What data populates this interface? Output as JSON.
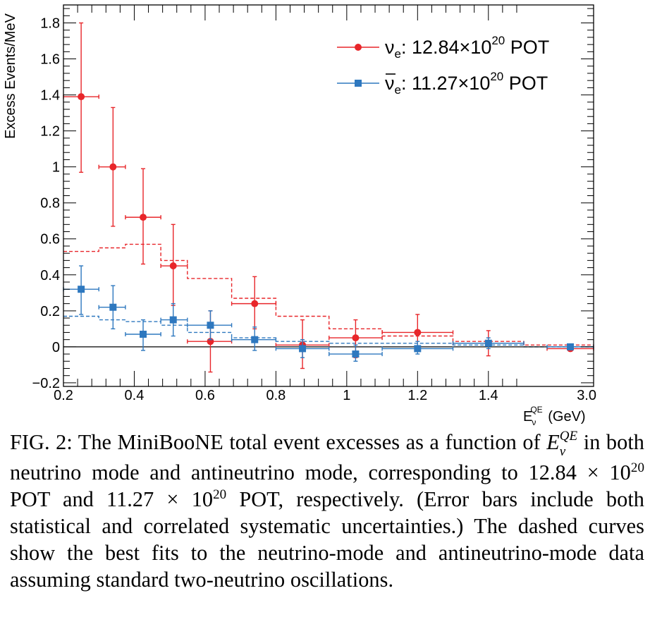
{
  "chart_data": {
    "type": "scatter",
    "xlabel_main": "E",
    "xlabel_sub": "ν",
    "xlabel_sup": "QE",
    "xlabel_unit": " (GeV)",
    "ylabel": "Excess Events/MeV",
    "xlim": [
      0.2,
      3.0
    ],
    "ylim": [
      -0.22,
      1.9
    ],
    "x_ticks": [
      {
        "v": 0.2,
        "label": "0.2"
      },
      {
        "v": 0.4,
        "label": "0.4"
      },
      {
        "v": 0.6,
        "label": "0.6"
      },
      {
        "v": 0.8,
        "label": "0.8"
      },
      {
        "v": 1.0,
        "label": "1"
      },
      {
        "v": 1.2,
        "label": "1.2"
      },
      {
        "v": 1.4,
        "label": "1.4"
      },
      {
        "v": 3.0,
        "label": "3.0"
      }
    ],
    "x_break_at": 1.5,
    "y_ticks": [
      {
        "v": -0.2,
        "label": "−0.2"
      },
      {
        "v": 0,
        "label": "0"
      },
      {
        "v": 0.2,
        "label": "0.2"
      },
      {
        "v": 0.4,
        "label": "0.4"
      },
      {
        "v": 0.6,
        "label": "0.6"
      },
      {
        "v": 0.8,
        "label": "0.8"
      },
      {
        "v": 1.0,
        "label": "1"
      },
      {
        "v": 1.2,
        "label": "1.2"
      },
      {
        "v": 1.4,
        "label": "1.4"
      },
      {
        "v": 1.6,
        "label": "1.6"
      },
      {
        "v": 1.8,
        "label": "1.8"
      }
    ],
    "legend_placement": "top-right",
    "series": [
      {
        "name": "νe: 12.84×10^20 POT",
        "legend_sym": "ν",
        "legend_sub": "e",
        "legend_text": ": 12.84×10",
        "legend_sup": "20",
        "legend_tail": " POT",
        "color": "#e8262a",
        "marker": "circle",
        "points": [
          {
            "x": 0.25,
            "xlo": 0.2,
            "xhi": 0.3,
            "y": 1.39,
            "ylo": 0.97,
            "yhi": 1.8
          },
          {
            "x": 0.34,
            "xlo": 0.3,
            "xhi": 0.375,
            "y": 1.0,
            "ylo": 0.67,
            "yhi": 1.33
          },
          {
            "x": 0.425,
            "xlo": 0.375,
            "xhi": 0.475,
            "y": 0.72,
            "ylo": 0.46,
            "yhi": 0.99
          },
          {
            "x": 0.51,
            "xlo": 0.475,
            "xhi": 0.55,
            "y": 0.45,
            "ylo": 0.23,
            "yhi": 0.68
          },
          {
            "x": 0.615,
            "xlo": 0.55,
            "xhi": 0.675,
            "y": 0.03,
            "ylo": -0.14,
            "yhi": 0.2
          },
          {
            "x": 0.74,
            "xlo": 0.675,
            "xhi": 0.8,
            "y": 0.24,
            "ylo": 0.1,
            "yhi": 0.39
          },
          {
            "x": 0.875,
            "xlo": 0.8,
            "xhi": 0.95,
            "y": 0.01,
            "ylo": -0.12,
            "yhi": 0.15
          },
          {
            "x": 1.025,
            "xlo": 0.95,
            "xhi": 1.1,
            "y": 0.05,
            "ylo": -0.06,
            "yhi": 0.15
          },
          {
            "x": 1.2,
            "xlo": 1.1,
            "xhi": 1.3,
            "y": 0.08,
            "ylo": -0.02,
            "yhi": 0.18
          },
          {
            "x": 1.4,
            "xlo": 1.3,
            "xhi": 1.5,
            "y": 0.02,
            "ylo": -0.05,
            "yhi": 0.09
          },
          {
            "x": 2.5,
            "xlo": 2.0,
            "xhi": 3.0,
            "y": -0.01,
            "ylo": -0.02,
            "yhi": 0.0
          }
        ],
        "fit": [
          {
            "xlo": 0.2,
            "xhi": 0.3,
            "y": 0.53
          },
          {
            "xlo": 0.3,
            "xhi": 0.375,
            "y": 0.55
          },
          {
            "xlo": 0.375,
            "xhi": 0.475,
            "y": 0.57
          },
          {
            "xlo": 0.475,
            "xhi": 0.55,
            "y": 0.48
          },
          {
            "xlo": 0.55,
            "xhi": 0.675,
            "y": 0.38
          },
          {
            "xlo": 0.675,
            "xhi": 0.8,
            "y": 0.27
          },
          {
            "xlo": 0.8,
            "xhi": 0.95,
            "y": 0.17
          },
          {
            "xlo": 0.95,
            "xhi": 1.1,
            "y": 0.1
          },
          {
            "xlo": 1.1,
            "xhi": 1.3,
            "y": 0.06
          },
          {
            "xlo": 1.3,
            "xhi": 1.5,
            "y": 0.03
          },
          {
            "xlo": 1.5,
            "xhi": 3.0,
            "y": 0.01
          }
        ]
      },
      {
        "name": "ν̄e: 11.27×10^20 POT",
        "legend_sym": "ν",
        "legend_sub": "e",
        "legend_text": ": 11.27×10",
        "legend_sup": "20",
        "legend_tail": " POT",
        "legend_bar": true,
        "color": "#2e78bf",
        "marker": "square",
        "points": [
          {
            "x": 0.25,
            "xlo": 0.2,
            "xhi": 0.3,
            "y": 0.32,
            "ylo": 0.18,
            "yhi": 0.45
          },
          {
            "x": 0.34,
            "xlo": 0.3,
            "xhi": 0.375,
            "y": 0.22,
            "ylo": 0.1,
            "yhi": 0.34
          },
          {
            "x": 0.425,
            "xlo": 0.375,
            "xhi": 0.475,
            "y": 0.07,
            "ylo": -0.02,
            "yhi": 0.15
          },
          {
            "x": 0.51,
            "xlo": 0.475,
            "xhi": 0.55,
            "y": 0.15,
            "ylo": 0.06,
            "yhi": 0.24
          },
          {
            "x": 0.615,
            "xlo": 0.55,
            "xhi": 0.675,
            "y": 0.12,
            "ylo": 0.04,
            "yhi": 0.2
          },
          {
            "x": 0.74,
            "xlo": 0.675,
            "xhi": 0.8,
            "y": 0.04,
            "ylo": -0.02,
            "yhi": 0.11
          },
          {
            "x": 0.875,
            "xlo": 0.8,
            "xhi": 0.95,
            "y": -0.01,
            "ylo": -0.06,
            "yhi": 0.04
          },
          {
            "x": 1.025,
            "xlo": 0.95,
            "xhi": 1.1,
            "y": -0.04,
            "ylo": -0.08,
            "yhi": 0.01
          },
          {
            "x": 1.2,
            "xlo": 1.1,
            "xhi": 1.3,
            "y": -0.01,
            "ylo": -0.04,
            "yhi": 0.03
          },
          {
            "x": 1.4,
            "xlo": 1.3,
            "xhi": 1.5,
            "y": 0.02,
            "ylo": -0.01,
            "yhi": 0.05
          },
          {
            "x": 2.5,
            "xlo": 2.0,
            "xhi": 3.0,
            "y": 0.0,
            "ylo": -0.01,
            "yhi": 0.01
          }
        ],
        "fit": [
          {
            "xlo": 0.2,
            "xhi": 0.3,
            "y": 0.17
          },
          {
            "xlo": 0.3,
            "xhi": 0.375,
            "y": 0.15
          },
          {
            "xlo": 0.375,
            "xhi": 0.475,
            "y": 0.14
          },
          {
            "xlo": 0.475,
            "xhi": 0.55,
            "y": 0.12
          },
          {
            "xlo": 0.55,
            "xhi": 0.675,
            "y": 0.08
          },
          {
            "xlo": 0.675,
            "xhi": 0.8,
            "y": 0.05
          },
          {
            "xlo": 0.8,
            "xhi": 0.95,
            "y": 0.03
          },
          {
            "xlo": 0.95,
            "xhi": 1.1,
            "y": 0.02
          },
          {
            "xlo": 1.1,
            "xhi": 1.3,
            "y": 0.02
          },
          {
            "xlo": 1.3,
            "xhi": 1.5,
            "y": 0.01
          },
          {
            "xlo": 1.5,
            "xhi": 3.0,
            "y": 0.0
          }
        ]
      }
    ]
  },
  "caption": {
    "p1": "FIG. 2: The MiniBooNE total event excesses as a function of ",
    "var_main": "E",
    "var_sub": "ν",
    "var_sup": "QE",
    "p2": " in both neutrino mode and antineutrino mode, corresponding to 12.84 × 10",
    "sup1": "20",
    "p3": " POT and 11.27 × 10",
    "sup2": "20",
    "p4": " POT, respectively. (Error bars include both statistical and correlated systematic uncertainties.) The dashed curves show the best fits to the neutrino-mode and antineutrino-mode data assuming standard two-neutrino oscillations."
  }
}
